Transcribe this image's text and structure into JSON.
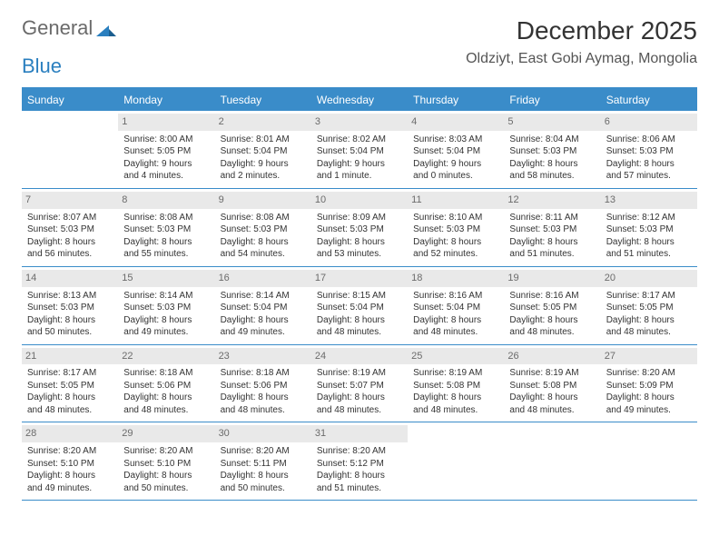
{
  "logo": {
    "text_a": "General",
    "text_b": "Blue"
  },
  "title": "December 2025",
  "location": "Oldziyt, East Gobi Aymag, Mongolia",
  "colors": {
    "header_bg": "#3a8cc9",
    "header_text": "#ffffff",
    "daynum_bg": "#e9e9e9",
    "daynum_text": "#6b6b6b",
    "body_text": "#333333",
    "rule": "#3a8cc9",
    "background": "#ffffff"
  },
  "typography": {
    "title_fontsize": 28,
    "location_fontsize": 16,
    "dayheader_fontsize": 12,
    "daynum_fontsize": 11,
    "cell_fontsize": 10
  },
  "day_names": [
    "Sunday",
    "Monday",
    "Tuesday",
    "Wednesday",
    "Thursday",
    "Friday",
    "Saturday"
  ],
  "weeks": [
    [
      {
        "n": "",
        "sr": "",
        "ss": "",
        "dl": ""
      },
      {
        "n": "1",
        "sr": "Sunrise: 8:00 AM",
        "ss": "Sunset: 5:05 PM",
        "dl": "Daylight: 9 hours and 4 minutes."
      },
      {
        "n": "2",
        "sr": "Sunrise: 8:01 AM",
        "ss": "Sunset: 5:04 PM",
        "dl": "Daylight: 9 hours and 2 minutes."
      },
      {
        "n": "3",
        "sr": "Sunrise: 8:02 AM",
        "ss": "Sunset: 5:04 PM",
        "dl": "Daylight: 9 hours and 1 minute."
      },
      {
        "n": "4",
        "sr": "Sunrise: 8:03 AM",
        "ss": "Sunset: 5:04 PM",
        "dl": "Daylight: 9 hours and 0 minutes."
      },
      {
        "n": "5",
        "sr": "Sunrise: 8:04 AM",
        "ss": "Sunset: 5:03 PM",
        "dl": "Daylight: 8 hours and 58 minutes."
      },
      {
        "n": "6",
        "sr": "Sunrise: 8:06 AM",
        "ss": "Sunset: 5:03 PM",
        "dl": "Daylight: 8 hours and 57 minutes."
      }
    ],
    [
      {
        "n": "7",
        "sr": "Sunrise: 8:07 AM",
        "ss": "Sunset: 5:03 PM",
        "dl": "Daylight: 8 hours and 56 minutes."
      },
      {
        "n": "8",
        "sr": "Sunrise: 8:08 AM",
        "ss": "Sunset: 5:03 PM",
        "dl": "Daylight: 8 hours and 55 minutes."
      },
      {
        "n": "9",
        "sr": "Sunrise: 8:08 AM",
        "ss": "Sunset: 5:03 PM",
        "dl": "Daylight: 8 hours and 54 minutes."
      },
      {
        "n": "10",
        "sr": "Sunrise: 8:09 AM",
        "ss": "Sunset: 5:03 PM",
        "dl": "Daylight: 8 hours and 53 minutes."
      },
      {
        "n": "11",
        "sr": "Sunrise: 8:10 AM",
        "ss": "Sunset: 5:03 PM",
        "dl": "Daylight: 8 hours and 52 minutes."
      },
      {
        "n": "12",
        "sr": "Sunrise: 8:11 AM",
        "ss": "Sunset: 5:03 PM",
        "dl": "Daylight: 8 hours and 51 minutes."
      },
      {
        "n": "13",
        "sr": "Sunrise: 8:12 AM",
        "ss": "Sunset: 5:03 PM",
        "dl": "Daylight: 8 hours and 51 minutes."
      }
    ],
    [
      {
        "n": "14",
        "sr": "Sunrise: 8:13 AM",
        "ss": "Sunset: 5:03 PM",
        "dl": "Daylight: 8 hours and 50 minutes."
      },
      {
        "n": "15",
        "sr": "Sunrise: 8:14 AM",
        "ss": "Sunset: 5:03 PM",
        "dl": "Daylight: 8 hours and 49 minutes."
      },
      {
        "n": "16",
        "sr": "Sunrise: 8:14 AM",
        "ss": "Sunset: 5:04 PM",
        "dl": "Daylight: 8 hours and 49 minutes."
      },
      {
        "n": "17",
        "sr": "Sunrise: 8:15 AM",
        "ss": "Sunset: 5:04 PM",
        "dl": "Daylight: 8 hours and 48 minutes."
      },
      {
        "n": "18",
        "sr": "Sunrise: 8:16 AM",
        "ss": "Sunset: 5:04 PM",
        "dl": "Daylight: 8 hours and 48 minutes."
      },
      {
        "n": "19",
        "sr": "Sunrise: 8:16 AM",
        "ss": "Sunset: 5:05 PM",
        "dl": "Daylight: 8 hours and 48 minutes."
      },
      {
        "n": "20",
        "sr": "Sunrise: 8:17 AM",
        "ss": "Sunset: 5:05 PM",
        "dl": "Daylight: 8 hours and 48 minutes."
      }
    ],
    [
      {
        "n": "21",
        "sr": "Sunrise: 8:17 AM",
        "ss": "Sunset: 5:05 PM",
        "dl": "Daylight: 8 hours and 48 minutes."
      },
      {
        "n": "22",
        "sr": "Sunrise: 8:18 AM",
        "ss": "Sunset: 5:06 PM",
        "dl": "Daylight: 8 hours and 48 minutes."
      },
      {
        "n": "23",
        "sr": "Sunrise: 8:18 AM",
        "ss": "Sunset: 5:06 PM",
        "dl": "Daylight: 8 hours and 48 minutes."
      },
      {
        "n": "24",
        "sr": "Sunrise: 8:19 AM",
        "ss": "Sunset: 5:07 PM",
        "dl": "Daylight: 8 hours and 48 minutes."
      },
      {
        "n": "25",
        "sr": "Sunrise: 8:19 AM",
        "ss": "Sunset: 5:08 PM",
        "dl": "Daylight: 8 hours and 48 minutes."
      },
      {
        "n": "26",
        "sr": "Sunrise: 8:19 AM",
        "ss": "Sunset: 5:08 PM",
        "dl": "Daylight: 8 hours and 48 minutes."
      },
      {
        "n": "27",
        "sr": "Sunrise: 8:20 AM",
        "ss": "Sunset: 5:09 PM",
        "dl": "Daylight: 8 hours and 49 minutes."
      }
    ],
    [
      {
        "n": "28",
        "sr": "Sunrise: 8:20 AM",
        "ss": "Sunset: 5:10 PM",
        "dl": "Daylight: 8 hours and 49 minutes."
      },
      {
        "n": "29",
        "sr": "Sunrise: 8:20 AM",
        "ss": "Sunset: 5:10 PM",
        "dl": "Daylight: 8 hours and 50 minutes."
      },
      {
        "n": "30",
        "sr": "Sunrise: 8:20 AM",
        "ss": "Sunset: 5:11 PM",
        "dl": "Daylight: 8 hours and 50 minutes."
      },
      {
        "n": "31",
        "sr": "Sunrise: 8:20 AM",
        "ss": "Sunset: 5:12 PM",
        "dl": "Daylight: 8 hours and 51 minutes."
      },
      {
        "n": "",
        "sr": "",
        "ss": "",
        "dl": ""
      },
      {
        "n": "",
        "sr": "",
        "ss": "",
        "dl": ""
      },
      {
        "n": "",
        "sr": "",
        "ss": "",
        "dl": ""
      }
    ]
  ]
}
